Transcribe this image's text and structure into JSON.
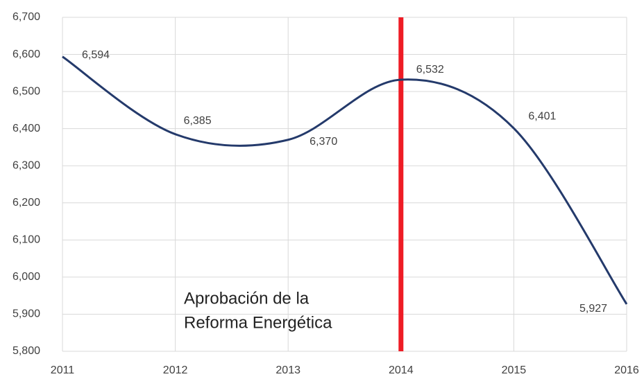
{
  "chart_data": {
    "type": "line",
    "x": [
      2011,
      2012,
      2013,
      2014,
      2015,
      2016
    ],
    "series": [
      {
        "color": "#243a6b",
        "values": [
          6594,
          6385,
          6370,
          6532,
          6401,
          5927
        ],
        "value_labels": [
          "6,594",
          "6,385",
          "6,370",
          "6,532",
          "6,401",
          "5,927"
        ]
      }
    ],
    "xlim": [
      2011,
      2016
    ],
    "xticks": [
      2011,
      2012,
      2013,
      2014,
      2015,
      2016
    ],
    "ylim": [
      5800,
      6700
    ],
    "yticks": [
      {
        "value": 5800,
        "label": "5,800"
      },
      {
        "value": 5900,
        "label": "5,900"
      },
      {
        "value": 6000,
        "label": "6,000"
      },
      {
        "value": 6100,
        "label": "6,100"
      },
      {
        "value": 6200,
        "label": "6,200"
      },
      {
        "value": 6300,
        "label": "6,300"
      },
      {
        "value": 6400,
        "label": "6,400"
      },
      {
        "value": 6500,
        "label": "6,500"
      },
      {
        "value": 6600,
        "label": "6,600"
      },
      {
        "value": 6700,
        "label": "6,700"
      }
    ],
    "grid": true,
    "smooth": true,
    "annotations": [
      {
        "x": 2014,
        "color": "#ee1c25",
        "lines": [
          "Aprobación de la",
          "Reforma Energética"
        ]
      }
    ]
  }
}
